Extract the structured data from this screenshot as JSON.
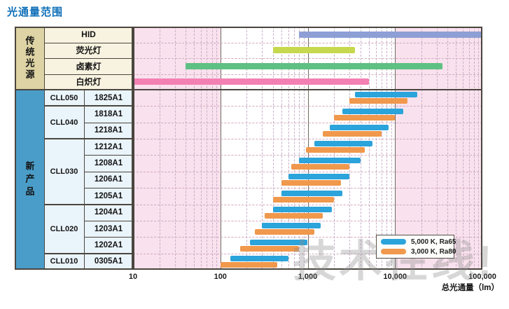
{
  "title": "光通量范围",
  "watermark": "技术在线!",
  "axis": {
    "label": "总光通量（lm）",
    "ticks": [
      "10",
      "100",
      "1,000",
      "10,000",
      "100,000"
    ],
    "min": 10,
    "max": 100000,
    "scale": "log"
  },
  "legend": {
    "items": [
      {
        "label": "5,000 K, Ra65",
        "color": "#2ba3db"
      },
      {
        "label": "3,000 K, Ra80",
        "color": "#f0984c"
      }
    ]
  },
  "table": {
    "traditional_header": "传统光源",
    "new_header": "新产品",
    "groups": [
      {
        "label": "CLL050",
        "rows": 1
      },
      {
        "label": "CLL040",
        "rows": 2
      },
      {
        "label": "CLL030",
        "rows": 4
      },
      {
        "label": "CLL020",
        "rows": 3
      },
      {
        "label": "CLL010",
        "rows": 1
      }
    ]
  },
  "chart_data": {
    "type": "bar",
    "orientation": "horizontal-range",
    "x_scale": "log",
    "xlim": [
      10,
      100000
    ],
    "x_label": "总光通量（lm）",
    "grid": "on",
    "legend_position": "bottom-right",
    "background_bands": [
      {
        "range_lm": [
          10,
          100
        ],
        "color": "#f9e1ed"
      },
      {
        "range_lm": [
          100,
          10000
        ],
        "color": "#ffffff"
      },
      {
        "range_lm": [
          10000,
          100000
        ],
        "color": "#f9e1ed"
      }
    ],
    "series": [
      {
        "name": "5,000 K, Ra65",
        "color": "#2ba3db"
      },
      {
        "name": "3,000 K, Ra80",
        "color": "#f0984c"
      }
    ],
    "traditional_rows": [
      {
        "label": "HID",
        "color": "#8d9fd5",
        "range_lm": [
          800,
          100000
        ]
      },
      {
        "label": "荧光灯",
        "color": "#c6d84d",
        "range_lm": [
          400,
          3500
        ]
      },
      {
        "label": "卤素灯",
        "color": "#5ec083",
        "range_lm": [
          40,
          35000
        ]
      },
      {
        "label": "白炽灯",
        "color": "#f380b3",
        "range_lm": [
          10,
          5000
        ]
      }
    ],
    "product_rows": [
      {
        "group": "CLL050",
        "model": "1825A1",
        "range_5000k_lm": [
          3500,
          18000
        ],
        "range_3000k_lm": [
          3000,
          14000
        ]
      },
      {
        "group": "CLL040",
        "model": "1818A1",
        "range_5000k_lm": [
          2500,
          12500
        ],
        "range_3000k_lm": [
          2000,
          10000
        ]
      },
      {
        "group": "CLL040",
        "model": "1218A1",
        "range_5000k_lm": [
          1800,
          8500
        ],
        "range_3000k_lm": [
          1500,
          7000
        ]
      },
      {
        "group": "CLL030",
        "model": "1212A1",
        "range_5000k_lm": [
          1200,
          5500
        ],
        "range_3000k_lm": [
          950,
          4500
        ]
      },
      {
        "group": "CLL030",
        "model": "1208A1",
        "range_5000k_lm": [
          800,
          4000
        ],
        "range_3000k_lm": [
          650,
          3000
        ]
      },
      {
        "group": "CLL030",
        "model": "1206A1",
        "range_5000k_lm": [
          600,
          3000
        ],
        "range_3000k_lm": [
          500,
          2400
        ]
      },
      {
        "group": "CLL030",
        "model": "1205A1",
        "range_5000k_lm": [
          500,
          2500
        ],
        "range_3000k_lm": [
          400,
          2000
        ]
      },
      {
        "group": "CLL020",
        "model": "1204A1",
        "range_5000k_lm": [
          400,
          1900
        ],
        "range_3000k_lm": [
          320,
          1500
        ]
      },
      {
        "group": "CLL020",
        "model": "1203A1",
        "range_5000k_lm": [
          300,
          1400
        ],
        "range_3000k_lm": [
          250,
          1200
        ]
      },
      {
        "group": "CLL020",
        "model": "1202A1",
        "range_5000k_lm": [
          220,
          1000
        ],
        "range_3000k_lm": [
          170,
          800
        ]
      },
      {
        "group": "CLL010",
        "model": "0305A1",
        "range_5000k_lm": [
          130,
          600
        ],
        "range_3000k_lm": [
          100,
          450
        ]
      }
    ],
    "colors": {
      "table_category_traditional_bg": "#ddd3a4",
      "table_traditional_cell_bg": "#f8f3e0",
      "table_category_new_bg": "#4a9dc9",
      "table_product_cell_bg": "#eaf4fb",
      "title_blue": "#0e6fb8"
    }
  }
}
